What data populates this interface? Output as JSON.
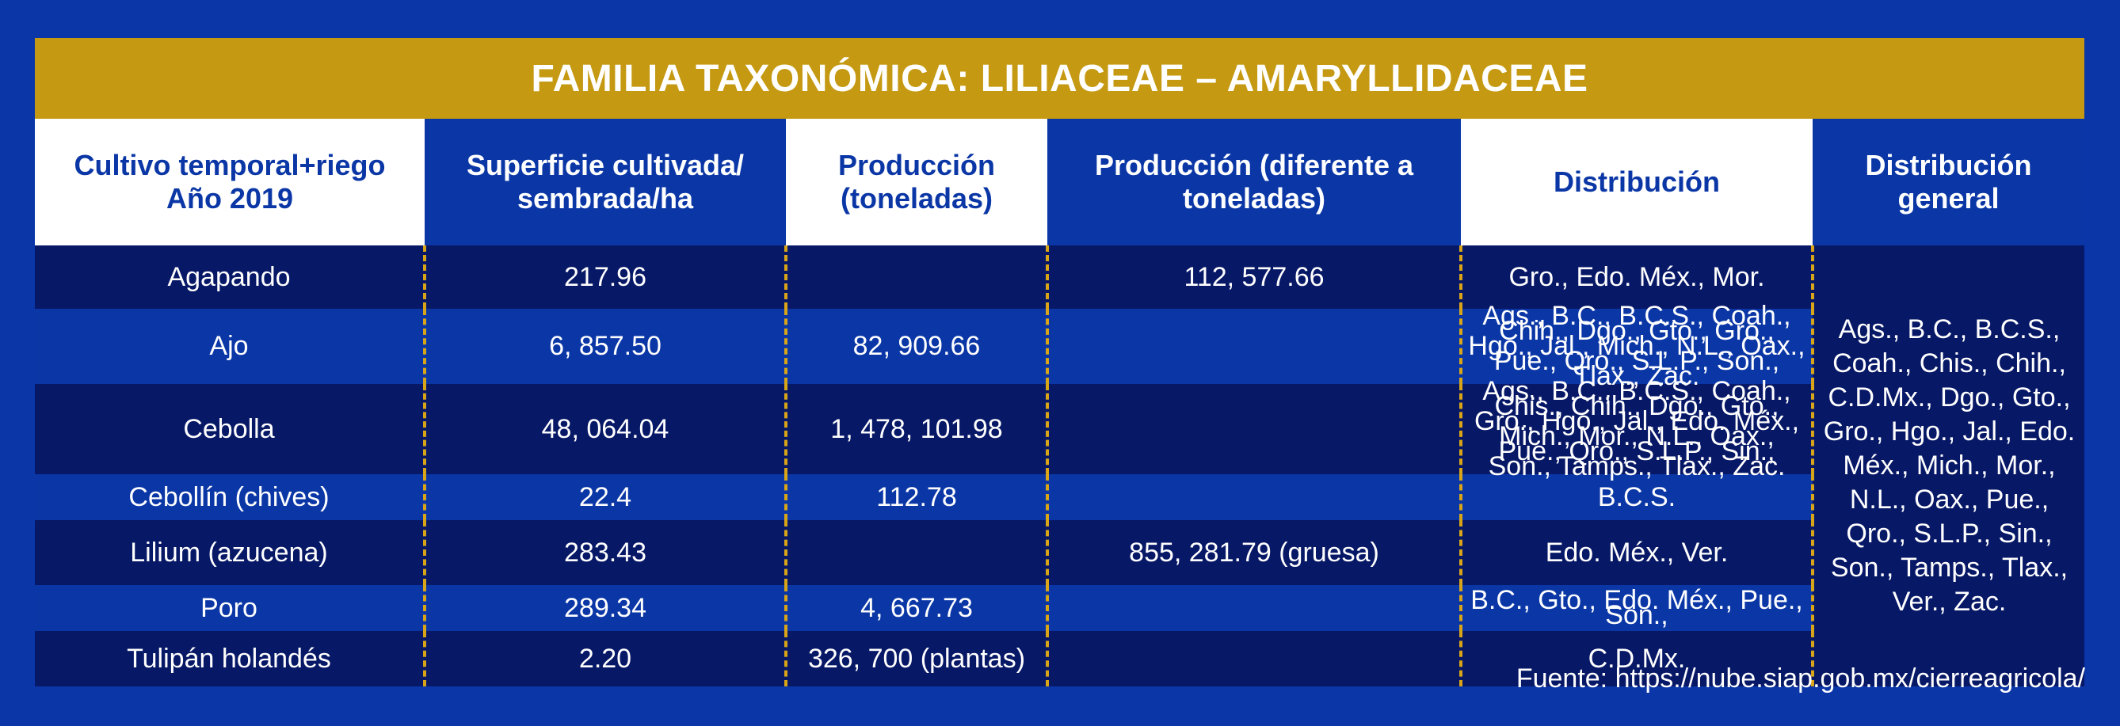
{
  "title": "FAMILIA TAXONÓMICA: LILIACEAE – AMARYLLIDACEAE",
  "headers": {
    "crop": "Cultivo temporal+riego Año 2019",
    "area": "Superficie cultivada/ sembrada/ha",
    "production": "Producción (toneladas)",
    "production_other": "Producción (diferente a toneladas)",
    "distribution": "Distribución",
    "general": "Distribución general"
  },
  "rows": [
    {
      "crop": "Agapando",
      "area": "217.96",
      "production": "",
      "production_other": "112, 577.66",
      "distribution": "Gro., Edo. Méx., Mor."
    },
    {
      "crop": "Ajo",
      "area": "6, 857.50",
      "production": "82, 909.66",
      "production_other": "",
      "distribution": "Ags., B.C., B.C.S., Coah., Chih., Dgo., Gto., Gro., Hgo., Jal., Mich., N.L., Oax., Pue., Qro., S.L.P., Son., Tlax., Zac."
    },
    {
      "crop": "Cebolla",
      "area": "48, 064.04",
      "production": "1, 478, 101.98",
      "production_other": "",
      "distribution": "Ags., B.C., B.C.S., Coah., Chis., Chih., Dgo., Gto., Gro., Hgo., Jal., Edo. Méx., Mich., Mor., N.L., Oax., Pue., Qro., S.L.P., Sin., Son., Tamps., Tlax., Zac."
    },
    {
      "crop": "Cebollín (chives)",
      "area": "22.4",
      "production": "112.78",
      "production_other": "",
      "distribution": "B.C.S."
    },
    {
      "crop": "Lilium (azucena)",
      "area": "283.43",
      "production": "",
      "production_other": "855, 281.79 (gruesa)",
      "distribution": "Edo. Méx., Ver."
    },
    {
      "crop": "Poro",
      "area": "289.34",
      "production": "4, 667.73",
      "production_other": "",
      "distribution": "B.C., Gto., Edo. Méx., Pue., Son.,"
    },
    {
      "crop": "Tulipán holandés",
      "area": "2.20",
      "production": "326, 700 (plantas)",
      "production_other": "",
      "distribution": "C.D.Mx."
    }
  ],
  "general_distribution": "Ags., B.C., B.C.S., Coah., Chis., Chih., C.D.Mx., Dgo., Gto., Gro., Hgo., Jal., Edo. Méx., Mich., Mor., N.L., Oax., Pue., Qro., S.L.P., Sin., Son., Tamps., Tlax., Ver., Zac.",
  "source": "Fuente: https://nube.siap.gob.mx/cierreagricola/",
  "colors": {
    "background": "#0a36a8",
    "title_bar": "#c59912",
    "dark_row": "#071866",
    "dashes": "#d8a418"
  }
}
